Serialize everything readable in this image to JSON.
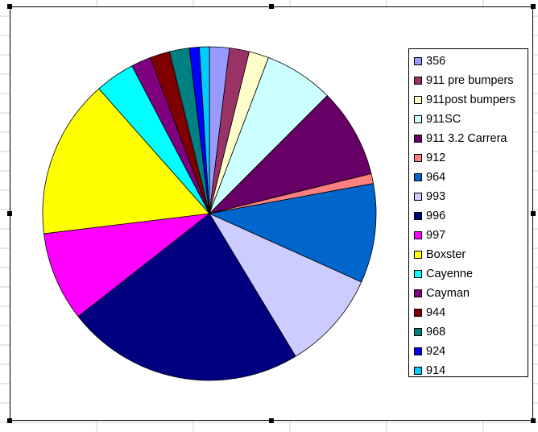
{
  "chart_data": {
    "type": "pie",
    "title": "",
    "legend_position": "right",
    "start_angle_deg": 0,
    "direction": "clockwise",
    "categories": [
      "356",
      "911 pre bumpers",
      "911post bumpers",
      "911SC",
      "911 3.2 Carrera",
      "912",
      "964",
      "993",
      "996",
      "997",
      "Boxster",
      "Cayenne",
      "Cayman",
      "944",
      "968",
      "924",
      "914"
    ],
    "values": [
      2,
      2,
      2,
      7,
      9,
      1,
      10,
      10,
      24,
      9,
      16,
      4,
      2,
      2,
      2,
      1,
      1
    ],
    "colors": [
      "#9999ff",
      "#993366",
      "#ffffcc",
      "#ccffff",
      "#660066",
      "#ff8080",
      "#0066cc",
      "#ccccff",
      "#000080",
      "#ff00ff",
      "#ffff00",
      "#00ffff",
      "#800080",
      "#800000",
      "#008080",
      "#0000ff",
      "#00ccff"
    ]
  }
}
